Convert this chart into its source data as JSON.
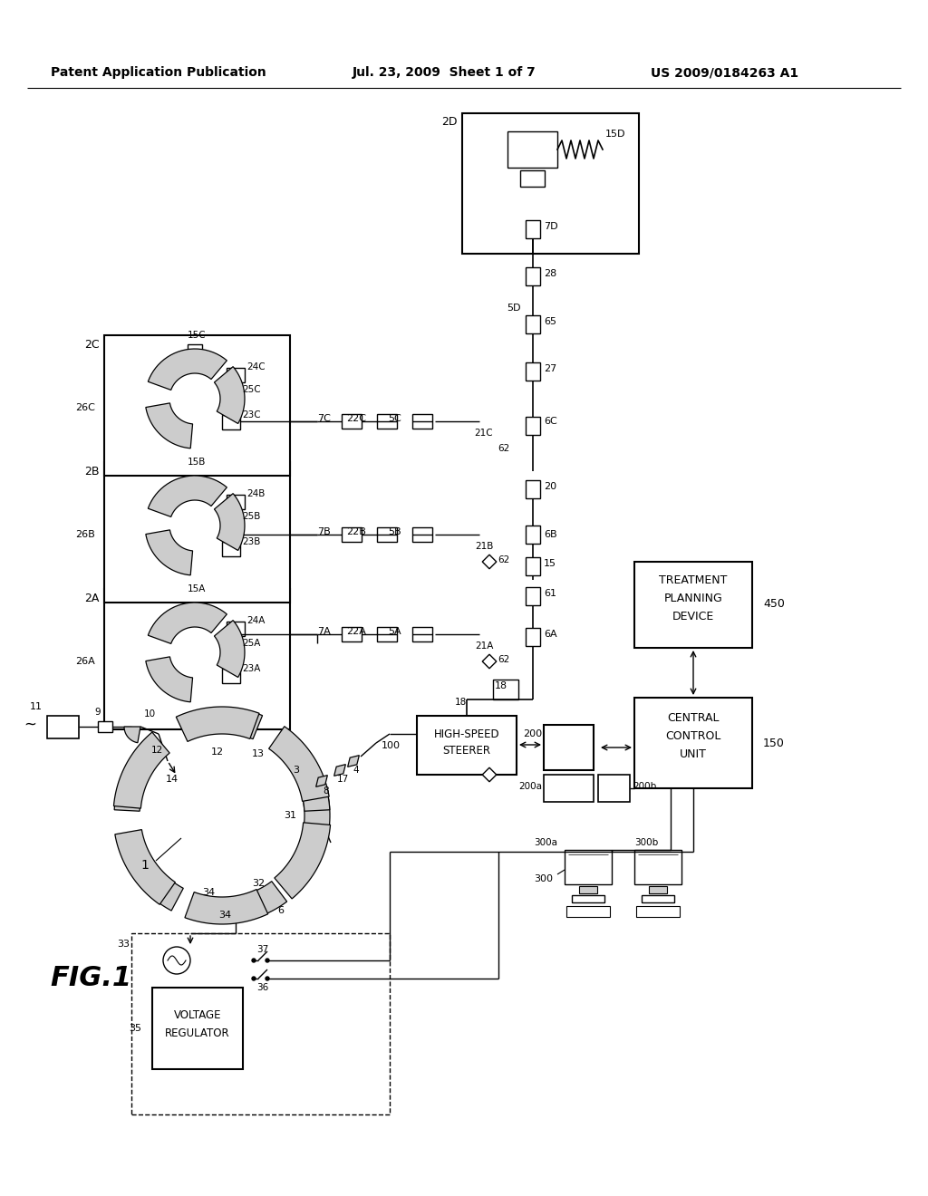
{
  "bg_color": "#ffffff",
  "header_left": "Patent Application Publication",
  "header_center": "Jul. 23, 2009  Sheet 1 of 7",
  "header_right": "US 2009/0184263 A1",
  "fig_label": "FIG.1",
  "line_color": "#000000",
  "fig_width": 10.24,
  "fig_height": 13.2
}
